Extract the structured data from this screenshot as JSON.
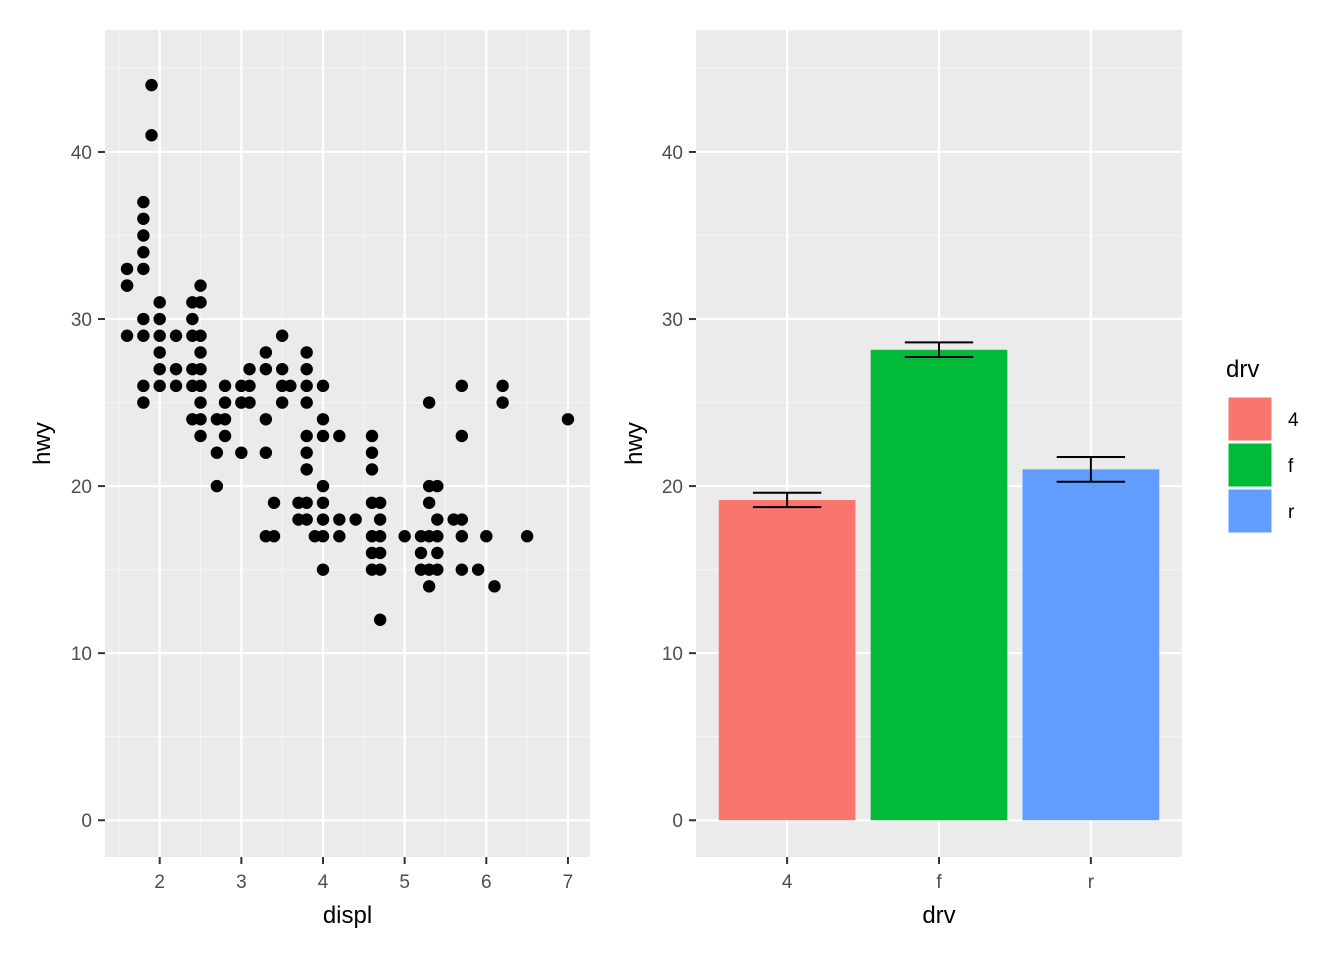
{
  "chart_data": [
    {
      "type": "scatter",
      "xlabel": "displ",
      "ylabel": "hwy",
      "xlim": [
        1.33,
        7.27
      ],
      "ylim": [
        -2.2,
        47.3
      ],
      "xticks": [
        2,
        3,
        4,
        5,
        6,
        7
      ],
      "yticks": [
        0,
        10,
        20,
        30,
        40
      ],
      "grid": true,
      "point_color": "#000000",
      "points": [
        [
          1.6,
          33
        ],
        [
          1.6,
          32
        ],
        [
          1.6,
          32
        ],
        [
          1.6,
          29
        ],
        [
          1.8,
          37
        ],
        [
          1.8,
          36
        ],
        [
          1.8,
          35
        ],
        [
          1.8,
          34
        ],
        [
          1.8,
          33
        ],
        [
          1.8,
          30
        ],
        [
          1.8,
          29
        ],
        [
          1.8,
          26
        ],
        [
          1.8,
          25
        ],
        [
          1.9,
          44
        ],
        [
          1.9,
          41
        ],
        [
          2.0,
          31
        ],
        [
          2.0,
          30
        ],
        [
          2.0,
          29
        ],
        [
          2.0,
          28
        ],
        [
          2.0,
          27
        ],
        [
          2.0,
          26
        ],
        [
          2.2,
          29
        ],
        [
          2.2,
          27
        ],
        [
          2.2,
          26
        ],
        [
          2.4,
          31
        ],
        [
          2.4,
          30
        ],
        [
          2.4,
          29
        ],
        [
          2.4,
          27
        ],
        [
          2.4,
          26
        ],
        [
          2.4,
          24
        ],
        [
          2.5,
          32
        ],
        [
          2.5,
          31
        ],
        [
          2.5,
          29
        ],
        [
          2.5,
          28
        ],
        [
          2.5,
          27
        ],
        [
          2.5,
          26
        ],
        [
          2.5,
          25
        ],
        [
          2.5,
          24
        ],
        [
          2.5,
          23
        ],
        [
          2.7,
          24
        ],
        [
          2.7,
          22
        ],
        [
          2.7,
          20
        ],
        [
          2.8,
          26
        ],
        [
          2.8,
          25
        ],
        [
          2.8,
          24
        ],
        [
          2.8,
          23
        ],
        [
          3.0,
          26
        ],
        [
          3.0,
          25
        ],
        [
          3.0,
          22
        ],
        [
          3.1,
          27
        ],
        [
          3.1,
          26
        ],
        [
          3.1,
          25
        ],
        [
          3.3,
          28
        ],
        [
          3.3,
          27
        ],
        [
          3.3,
          24
        ],
        [
          3.3,
          22
        ],
        [
          3.3,
          17
        ],
        [
          3.4,
          19
        ],
        [
          3.4,
          17
        ],
        [
          3.5,
          29
        ],
        [
          3.5,
          27
        ],
        [
          3.5,
          26
        ],
        [
          3.5,
          25
        ],
        [
          3.6,
          26
        ],
        [
          3.7,
          19
        ],
        [
          3.7,
          18
        ],
        [
          3.8,
          28
        ],
        [
          3.8,
          27
        ],
        [
          3.8,
          26
        ],
        [
          3.8,
          25
        ],
        [
          3.8,
          23
        ],
        [
          3.8,
          22
        ],
        [
          3.8,
          21
        ],
        [
          3.8,
          19
        ],
        [
          3.8,
          18
        ],
        [
          3.9,
          17
        ],
        [
          4.0,
          26
        ],
        [
          4.0,
          24
        ],
        [
          4.0,
          23
        ],
        [
          4.0,
          20
        ],
        [
          4.0,
          19
        ],
        [
          4.0,
          18
        ],
        [
          4.0,
          17
        ],
        [
          4.0,
          15
        ],
        [
          4.2,
          23
        ],
        [
          4.2,
          18
        ],
        [
          4.2,
          17
        ],
        [
          4.4,
          18
        ],
        [
          4.6,
          23
        ],
        [
          4.6,
          22
        ],
        [
          4.6,
          21
        ],
        [
          4.6,
          19
        ],
        [
          4.6,
          17
        ],
        [
          4.6,
          16
        ],
        [
          4.6,
          15
        ],
        [
          4.7,
          19
        ],
        [
          4.7,
          18
        ],
        [
          4.7,
          17
        ],
        [
          4.7,
          16
        ],
        [
          4.7,
          15
        ],
        [
          4.7,
          12
        ],
        [
          5.0,
          17
        ],
        [
          5.2,
          17
        ],
        [
          5.2,
          16
        ],
        [
          5.2,
          15
        ],
        [
          5.3,
          25
        ],
        [
          5.3,
          20
        ],
        [
          5.3,
          19
        ],
        [
          5.3,
          17
        ],
        [
          5.3,
          15
        ],
        [
          5.3,
          14
        ],
        [
          5.4,
          20
        ],
        [
          5.4,
          18
        ],
        [
          5.4,
          17
        ],
        [
          5.4,
          16
        ],
        [
          5.4,
          15
        ],
        [
          5.6,
          18
        ],
        [
          5.7,
          26
        ],
        [
          5.7,
          23
        ],
        [
          5.7,
          18
        ],
        [
          5.7,
          17
        ],
        [
          5.7,
          15
        ],
        [
          5.9,
          15
        ],
        [
          6.0,
          17
        ],
        [
          6.1,
          14
        ],
        [
          6.2,
          26
        ],
        [
          6.2,
          25
        ],
        [
          6.5,
          17
        ],
        [
          7.0,
          24
        ]
      ]
    },
    {
      "type": "bar",
      "xlabel": "drv",
      "ylabel": "hwy",
      "categories": [
        "4",
        "f",
        "r"
      ],
      "values": [
        19.17,
        28.16,
        21.0
      ],
      "error_bars": [
        [
          18.74,
          19.6
        ],
        [
          27.73,
          28.6
        ],
        [
          20.26,
          21.74
        ]
      ],
      "ylim": [
        -2.2,
        47.3
      ],
      "yticks": [
        0,
        10,
        20,
        30,
        40
      ],
      "colors": [
        "#F8766D",
        "#00BA38",
        "#619CFF"
      ],
      "grid": true,
      "legend": {
        "title": "drv",
        "placement": "right",
        "entries": [
          "4",
          "f",
          "r"
        ]
      }
    }
  ]
}
